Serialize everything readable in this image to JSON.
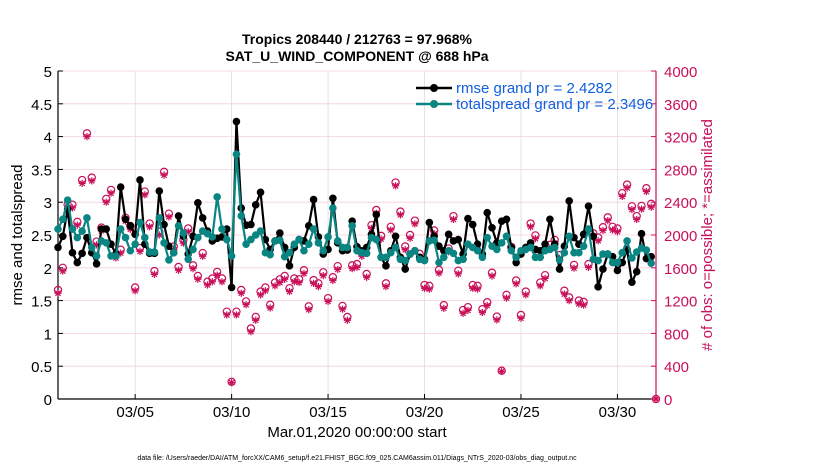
{
  "colors": {
    "rmse": "#000000",
    "totalspread": "#0a8582",
    "obs": "#c8105a",
    "obs_grid": "#f4cfdc",
    "time_grid": "#dcdcdc",
    "legend_text": "#0f5fe0",
    "axis_left": "#000000"
  },
  "footer": "data file: /Users/raeder/DAI/ATM_forcXX/CAM6_setup/f.e21.FHIST_BGC.f09_025.CAM6assim.011/Diags_NTrS_2020-03/obs_diag_output.nc",
  "chart_data": {
    "type": "line",
    "title": [
      "Tropics 208440 / 212763 = 97.968%",
      "SAT_U_WIND_COMPONENT @ 688 hPa"
    ],
    "xlabel": "Mar.01,2020 00:00:00 start",
    "ylabel_left": "rmse and totalspread",
    "ylabel_right": "# of obs: o=possible; *=assimilated",
    "time_step_days": 0.25,
    "xlim_days": [
      0,
      31
    ],
    "xticks": [
      {
        "day": 4,
        "label": "03/05"
      },
      {
        "day": 9,
        "label": "03/10"
      },
      {
        "day": 14,
        "label": "03/15"
      },
      {
        "day": 19,
        "label": "03/20"
      },
      {
        "day": 24,
        "label": "03/25"
      },
      {
        "day": 29,
        "label": "03/30"
      }
    ],
    "ylim_left": [
      0,
      5
    ],
    "yticks_left": [
      0,
      0.5,
      1,
      1.5,
      2,
      2.5,
      3,
      3.5,
      4,
      4.5,
      5
    ],
    "ytick_labels_left": [
      "0",
      "0.5",
      "1",
      "1.5",
      "2",
      "2.5",
      "3",
      "3.5",
      "4",
      "4.5",
      "5"
    ],
    "ylim_right": [
      0,
      4000
    ],
    "yticks_right": [
      0,
      400,
      800,
      1200,
      1600,
      2000,
      2400,
      2800,
      3200,
      3600,
      4000
    ],
    "ytick_labels_right": [
      "0",
      "400",
      "800",
      "1200",
      "1600",
      "2000",
      "2400",
      "2800",
      "3200",
      "3600",
      "4000"
    ],
    "grid": true,
    "legend": {
      "position": "top-right",
      "entries": [
        {
          "label": "rmse grand pr = 2.4282",
          "series": "rmse"
        },
        {
          "label": "totalspread grand pr = 2.3496",
          "series": "totalspread"
        }
      ]
    },
    "series": [
      {
        "name": "rmse",
        "axis": "left",
        "style": "line-dot",
        "color_key": "rmse",
        "values": [
          2.31,
          2.48,
          2.89,
          2.23,
          2.08,
          2.22,
          2.46,
          2.23,
          2.06,
          2.59,
          2.59,
          2.36,
          2.21,
          3.23,
          2.74,
          2.64,
          2.51,
          3.34,
          2.36,
          2.22,
          2.22,
          3.17,
          2.66,
          2.33,
          2.23,
          2.79,
          2.48,
          2.21,
          2.48,
          2.99,
          2.76,
          2.56,
          2.41,
          2.45,
          2.47,
          2.59,
          1.7,
          4.23,
          2.91,
          2.65,
          2.66,
          2.96,
          3.15,
          2.43,
          2.28,
          2.41,
          2.53,
          2.31,
          2.03,
          2.31,
          2.43,
          2.41,
          2.64,
          3.04,
          2.47,
          2.21,
          2.28,
          3.06,
          2.38,
          2.26,
          2.27,
          2.71,
          2.32,
          2.26,
          2.31,
          2.51,
          2.81,
          2.16,
          2.03,
          2.26,
          2.48,
          2.16,
          1.98,
          2.21,
          2.26,
          2.16,
          2.13,
          2.69,
          2.48,
          2.33,
          2.26,
          2.51,
          2.41,
          2.43,
          2.21,
          2.75,
          2.66,
          2.36,
          2.21,
          2.84,
          2.61,
          2.38,
          2.71,
          2.74,
          2.31,
          2.08,
          2.21,
          2.31,
          2.38,
          2.28,
          2.26,
          2.36,
          2.74,
          2.36,
          1.98,
          2.33,
          3.02,
          2.46,
          2.36,
          2.51,
          2.94,
          2.48,
          1.71,
          1.98,
          2.21,
          2.17,
          1.96,
          2.08,
          2.28,
          1.78,
          1.94,
          2.52,
          2.14,
          2.17
        ]
      },
      {
        "name": "totalspread",
        "axis": "left",
        "style": "line-dot",
        "color_key": "totalspread",
        "values": [
          2.59,
          2.74,
          3.03,
          2.59,
          2.46,
          2.56,
          2.76,
          2.31,
          2.18,
          2.41,
          2.38,
          2.18,
          2.18,
          2.59,
          2.46,
          2.26,
          2.36,
          2.69,
          2.46,
          2.24,
          2.24,
          2.76,
          2.38,
          2.12,
          2.23,
          2.64,
          2.53,
          2.13,
          2.28,
          2.46,
          2.56,
          2.52,
          2.47,
          3.08,
          2.59,
          2.43,
          2.18,
          3.73,
          2.79,
          2.36,
          2.43,
          2.5,
          2.56,
          2.23,
          2.2,
          2.41,
          2.42,
          2.17,
          2.23,
          2.36,
          2.43,
          2.26,
          2.36,
          2.59,
          2.38,
          2.26,
          2.47,
          2.91,
          2.41,
          2.31,
          2.31,
          2.64,
          2.26,
          2.23,
          2.22,
          2.46,
          2.43,
          2.16,
          2.16,
          2.23,
          2.31,
          2.13,
          2.11,
          2.21,
          2.26,
          2.13,
          2.11,
          2.41,
          2.42,
          2.08,
          2.16,
          2.26,
          2.22,
          2.11,
          2.13,
          2.36,
          2.31,
          2.26,
          2.16,
          2.46,
          2.33,
          2.28,
          2.38,
          2.48,
          2.26,
          2.16,
          2.26,
          2.28,
          2.31,
          2.16,
          2.16,
          2.26,
          2.28,
          2.31,
          2.12,
          2.23,
          2.48,
          2.23,
          2.23,
          2.33,
          2.59,
          2.13,
          2.11,
          2.21,
          2.21,
          2.08,
          2.08,
          2.23,
          2.41,
          2.15,
          2.24,
          2.3,
          2.27,
          2.07
        ]
      },
      {
        "name": "obs possible",
        "axis": "right",
        "style": "circle",
        "color_key": "obs",
        "values": [
          1330,
          1600,
          2370,
          2370,
          2160,
          2670,
          3240,
          2700,
          1920,
          2090,
          2440,
          2550,
          1760,
          1820,
          2210,
          2110,
          1360,
          1840,
          2530,
          2140,
          1560,
          2040,
          2770,
          2260,
          1860,
          1610,
          1940,
          2080,
          1630,
          1500,
          1780,
          1430,
          1470,
          1550,
          1470,
          1065,
          210,
          1065,
          1330,
          1190,
          860,
          1000,
          1310,
          1360,
          1150,
          1420,
          1460,
          1500,
          1350,
          1470,
          1460,
          1570,
          1130,
          1450,
          1410,
          1545,
          1230,
          1485,
          1620,
          1135,
          1000,
          1630,
          1645,
          1780,
          1525,
          2120,
          2305,
          1990,
          1410,
          2100,
          2640,
          2285,
          1860,
          2000,
          2175,
          1770,
          1390,
          1380,
          2055,
          1575,
          1145,
          1835,
          2230,
          1565,
          1085,
          1120,
          1390,
          1380,
          1095,
          1180,
          1540,
          1005,
          345,
          1270,
          1855,
          1445,
          1025,
          1310,
          2140,
          1995,
          1420,
          1510,
          1880,
          1940,
          1755,
          1320,
          1240,
          1635,
          1200,
          1185,
          1645,
          2020,
          1970,
          2095,
          2215,
          2100,
          2080,
          2510,
          2615,
          2350,
          2230,
          2355,
          2570,
          2380,
          0
        ]
      },
      {
        "name": "obs assimilated",
        "axis": "right",
        "style": "asterisk",
        "color_key": "obs",
        "values": [
          1290,
          1560,
          2330,
          2330,
          2120,
          2630,
          3200,
          2660,
          1880,
          2050,
          2400,
          2510,
          1720,
          1780,
          2170,
          2070,
          1320,
          1800,
          2490,
          2100,
          1520,
          2000,
          2730,
          2220,
          1820,
          1570,
          1900,
          2040,
          1590,
          1460,
          1740,
          1390,
          1430,
          1510,
          1430,
          1025,
          200,
          1025,
          1290,
          1150,
          820,
          960,
          1270,
          1320,
          1110,
          1380,
          1420,
          1460,
          1310,
          1430,
          1420,
          1530,
          1090,
          1410,
          1370,
          1505,
          1190,
          1445,
          1580,
          1095,
          960,
          1590,
          1605,
          1740,
          1485,
          2080,
          2265,
          1950,
          1370,
          2060,
          2600,
          2245,
          1820,
          1960,
          2135,
          1730,
          1350,
          1340,
          2015,
          1535,
          1105,
          1795,
          2190,
          1525,
          1045,
          1080,
          1350,
          1340,
          1055,
          1140,
          1500,
          965,
          335,
          1230,
          1815,
          1405,
          985,
          1270,
          2100,
          1955,
          1380,
          1470,
          1840,
          1900,
          1715,
          1280,
          1200,
          1595,
          1160,
          1145,
          1605,
          1980,
          1930,
          2055,
          2175,
          2060,
          2040,
          2470,
          2575,
          2310,
          2190,
          2315,
          2530,
          2340,
          0
        ]
      }
    ]
  }
}
